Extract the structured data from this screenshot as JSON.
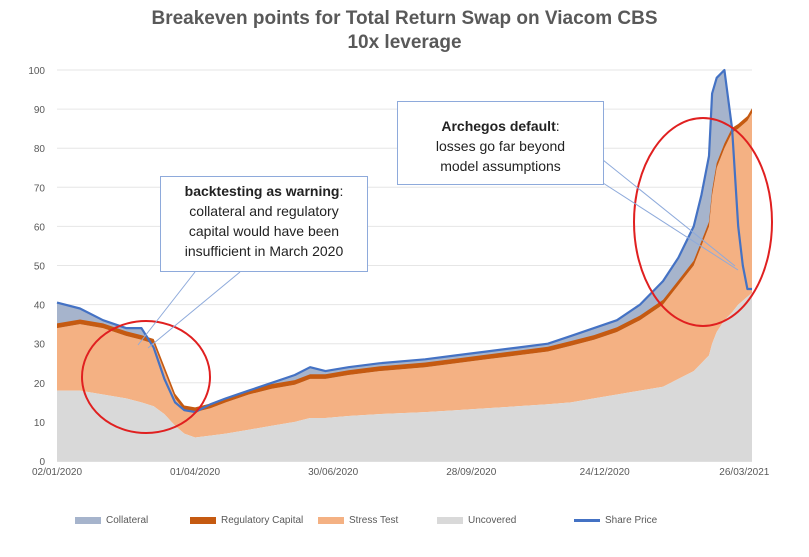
{
  "chart_data": {
    "type": "area",
    "title": "Breakeven points for Total Return Swap on Viacom CBS",
    "subtitle": "10x leverage",
    "ylim": [
      0,
      100
    ],
    "y_ticks": [
      "0",
      "10",
      "20",
      "30",
      "40",
      "50",
      "60",
      "70",
      "80",
      "90",
      "100"
    ],
    "x_tick_labels": [
      "02/01/2020",
      "01/04/2020",
      "30/06/2020",
      "28/09/2020",
      "24/12/2020",
      "26/03/2021"
    ],
    "x_tick_days": [
      0,
      90,
      180,
      270,
      357,
      448
    ],
    "x_end_day": 453,
    "colors": {
      "collateral": "#a6b4cc",
      "regulatory_capital": "#c55a11",
      "stress_test": "#f4b183",
      "uncovered": "#d9d9d9",
      "share_price": "#4472c4",
      "circle": "#e02020",
      "callout_border": "#8eaadb"
    },
    "legend": [
      {
        "key": "collateral",
        "label": "Collateral",
        "kind": "area"
      },
      {
        "key": "regulatory_capital",
        "label": "Regulatory Capital",
        "kind": "area"
      },
      {
        "key": "stress_test",
        "label": "Stress Test",
        "kind": "area"
      },
      {
        "key": "uncovered",
        "label": "Uncovered",
        "kind": "area"
      },
      {
        "key": "share_price",
        "label": "Share Price",
        "kind": "line"
      }
    ],
    "x": [
      0,
      15,
      30,
      45,
      55,
      63,
      70,
      77,
      83,
      90,
      100,
      110,
      125,
      140,
      155,
      165,
      175,
      190,
      210,
      240,
      260,
      280,
      300,
      320,
      335,
      350,
      365,
      380,
      395,
      405,
      415,
      420,
      425,
      427,
      430,
      435,
      440,
      444,
      447,
      450,
      453
    ],
    "series": [
      {
        "name": "Share Price",
        "key": "share_price",
        "values": [
          40.5,
          39,
          36,
          34,
          34,
          29,
          21,
          15,
          13,
          12.5,
          14.5,
          16,
          18,
          20,
          22,
          24,
          23,
          24,
          25,
          26,
          27,
          28,
          29,
          30,
          32,
          34,
          36,
          40,
          46,
          52,
          60,
          68,
          78,
          94,
          98,
          100,
          85,
          60,
          50,
          44,
          44
        ]
      },
      {
        "name": "Regulatory Capital",
        "key": "regulatory_capital",
        "values": [
          34,
          35,
          34,
          32,
          31,
          30,
          23,
          16,
          13,
          12.5,
          13.5,
          15,
          17,
          18.5,
          19.5,
          21,
          21,
          22,
          23,
          24,
          25,
          26,
          27,
          28,
          29.5,
          31,
          33,
          36,
          40,
          45,
          50,
          55,
          60,
          68,
          75,
          80,
          84,
          85,
          86,
          87,
          89
        ]
      },
      {
        "name": "Stress Test",
        "key": "stress_test",
        "values": [
          34,
          35,
          34,
          32,
          31,
          30,
          23,
          16,
          13,
          12.5,
          13.5,
          15,
          17,
          18.5,
          19.5,
          21,
          21,
          22,
          23,
          24,
          25,
          26,
          27,
          28,
          29.5,
          31,
          33,
          36,
          40,
          45,
          50,
          55,
          60,
          68,
          75,
          80,
          84,
          85,
          86,
          87,
          89
        ]
      },
      {
        "name": "Uncovered",
        "key": "uncovered",
        "values": [
          18,
          18,
          17,
          16,
          15,
          14,
          12,
          9,
          7,
          6,
          6.5,
          7,
          8,
          9,
          10,
          11,
          11,
          11.5,
          12,
          12.5,
          13,
          13.5,
          14,
          14.5,
          15,
          16,
          17,
          18,
          19,
          21,
          23,
          25,
          27,
          30,
          33,
          36,
          38,
          40,
          41,
          42,
          43
        ]
      }
    ],
    "annotations": [
      {
        "key": "backtest",
        "head": "backtesting as warning",
        "suffix": ":",
        "lines": [
          "collateral and regulatory",
          "capital would have been",
          "insufficient in March 2020"
        ]
      },
      {
        "key": "archegos",
        "head": "Archegos default",
        "suffix": ":",
        "lines": [
          "losses go far beyond",
          "model assumptions"
        ]
      }
    ]
  }
}
